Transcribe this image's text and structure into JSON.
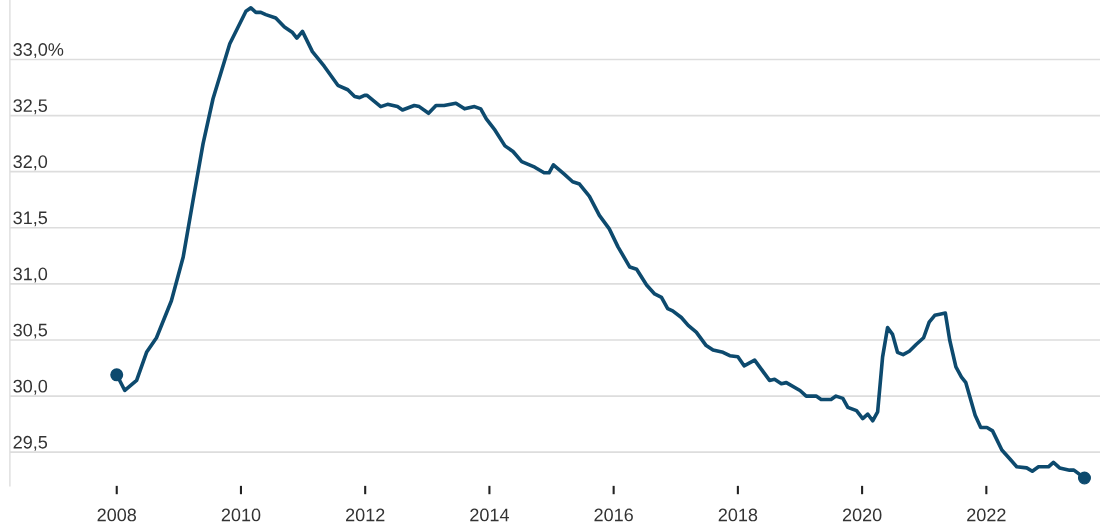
{
  "chart_data": {
    "type": "line",
    "x": [
      2008.0,
      2008.13,
      2008.32,
      2008.48,
      2008.64,
      2008.88,
      2009.07,
      2009.23,
      2009.39,
      2009.55,
      2009.82,
      2010.08,
      2010.16,
      2010.24,
      2010.32,
      2010.4,
      2010.56,
      2010.7,
      2010.83,
      2010.9,
      2010.99,
      2011.15,
      2011.34,
      2011.56,
      2011.72,
      2011.83,
      2011.91,
      2011.99,
      2012.03,
      2012.25,
      2012.36,
      2012.52,
      2012.6,
      2012.79,
      2012.87,
      2013.02,
      2013.14,
      2013.27,
      2013.46,
      2013.6,
      2013.76,
      2013.86,
      2013.95,
      2014.09,
      2014.25,
      2014.38,
      2014.52,
      2014.73,
      2014.88,
      2014.96,
      2015.03,
      2015.2,
      2015.34,
      2015.45,
      2015.61,
      2015.77,
      2015.93,
      2016.07,
      2016.26,
      2016.37,
      2016.53,
      2016.66,
      2016.77,
      2016.87,
      2016.95,
      2017.09,
      2017.2,
      2017.33,
      2017.49,
      2017.6,
      2017.76,
      2017.87,
      2018.0,
      2018.1,
      2018.27,
      2018.51,
      2018.59,
      2018.7,
      2018.78,
      2019.0,
      2019.1,
      2019.26,
      2019.34,
      2019.5,
      2019.58,
      2019.69,
      2019.77,
      2019.91,
      2020.01,
      2020.09,
      2020.17,
      2020.25,
      2020.33,
      2020.41,
      2020.49,
      2020.57,
      2020.66,
      2020.76,
      2020.87,
      2020.99,
      2021.08,
      2021.17,
      2021.25,
      2021.34,
      2021.41,
      2021.51,
      2021.6,
      2021.67,
      2021.82,
      2021.91,
      2022.01,
      2022.1,
      2022.25,
      2022.38,
      2022.49,
      2022.65,
      2022.74,
      2022.84,
      2023.0,
      2023.08,
      2023.18,
      2023.34,
      2023.41,
      2023.58
    ],
    "series": [
      {
        "color": "#0d4a6e",
        "marker": "none",
        "values": [
          30.19,
          30.05,
          30.14,
          30.39,
          30.52,
          30.85,
          31.24,
          31.75,
          32.25,
          32.65,
          33.14,
          33.43,
          33.46,
          33.42,
          33.42,
          33.4,
          33.37,
          33.29,
          33.24,
          33.19,
          33.25,
          33.07,
          32.94,
          32.77,
          32.73,
          32.67,
          32.66,
          32.68,
          32.68,
          32.58,
          32.6,
          32.58,
          32.55,
          32.59,
          32.58,
          32.52,
          32.59,
          32.59,
          32.61,
          32.56,
          32.58,
          32.56,
          32.47,
          32.37,
          32.23,
          32.18,
          32.09,
          32.04,
          31.99,
          31.99,
          32.06,
          31.98,
          31.91,
          31.89,
          31.78,
          31.61,
          31.49,
          31.33,
          31.15,
          31.13,
          30.99,
          30.91,
          30.88,
          30.78,
          30.76,
          30.7,
          30.63,
          30.57,
          30.45,
          30.41,
          30.39,
          30.36,
          30.35,
          30.27,
          30.32,
          30.14,
          30.15,
          30.11,
          30.12,
          30.05,
          30.0,
          30.0,
          29.97,
          29.97,
          30.0,
          29.98,
          29.9,
          29.87,
          29.8,
          29.84,
          29.78,
          29.86,
          30.35,
          30.61,
          30.55,
          30.39,
          30.37,
          30.4,
          30.46,
          30.52,
          30.66,
          30.72,
          30.73,
          30.74,
          30.5,
          30.26,
          30.17,
          30.12,
          29.83,
          29.72,
          29.72,
          29.69,
          29.52,
          29.44,
          29.37,
          29.36,
          29.33,
          29.37,
          29.37,
          29.41,
          29.36,
          29.34,
          29.34,
          29.27
        ]
      },
      {
        "type": "scatter",
        "marker": "circle",
        "color": "#0d4a6e",
        "x": [
          2008.0,
          2023.58
        ],
        "values": [
          30.19,
          29.27
        ]
      }
    ],
    "xlim": [
      2006.28,
      2023.83
    ],
    "ylim": [
      29.2,
      33.53
    ],
    "xticks": [
      2008,
      2010,
      2012,
      2014,
      2016,
      2018,
      2020,
      2022
    ],
    "yticks": [
      {
        "value": 29.5,
        "label": "29,5"
      },
      {
        "value": 30.0,
        "label": "30,0"
      },
      {
        "value": 30.5,
        "label": "30,5"
      },
      {
        "value": 31.0,
        "label": "31,0"
      },
      {
        "value": 31.5,
        "label": "31,5"
      },
      {
        "value": 32.0,
        "label": "32,0"
      },
      {
        "value": 32.5,
        "label": "32,5"
      },
      {
        "value": 33.0,
        "label": "33,0%"
      }
    ],
    "grid": "y",
    "line_style": "solid"
  }
}
